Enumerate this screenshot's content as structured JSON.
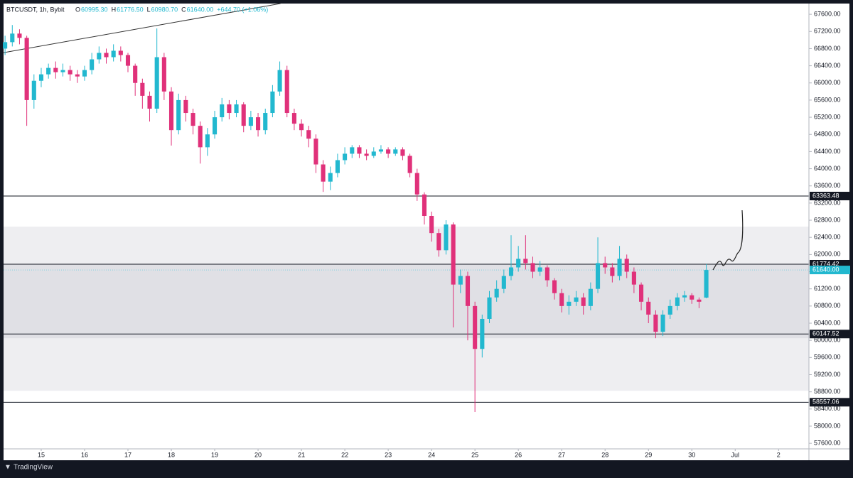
{
  "header": {
    "symbol": "BTCUSDT, 1h, Bybit",
    "ohlc": [
      {
        "key": "O",
        "value": "60995.30"
      },
      {
        "key": "H",
        "value": "61776.50"
      },
      {
        "key": "L",
        "value": "60980.70"
      },
      {
        "key": "C",
        "value": "61640.00"
      }
    ],
    "change": "+644.70 (+1.06%)"
  },
  "footer": {
    "brand": "TradingView"
  },
  "chart_data": {
    "type": "candlestick",
    "up_color": "#22b8cf",
    "down_color": "#e0317a",
    "open": [
      66800,
      66950,
      67150,
      67050,
      65600,
      66050,
      66200,
      66350,
      66250,
      66300,
      66200,
      66150,
      66300,
      66550,
      66700,
      66600,
      66750,
      66650,
      66400,
      66000,
      65700,
      65400,
      66600,
      65800,
      64900,
      65600,
      65300,
      65000,
      64500,
      64800,
      65200,
      65500,
      65300,
      65500,
      65000,
      65200,
      64900,
      65300,
      65800,
      66300,
      65300,
      65050,
      64900,
      64700,
      64100,
      63700,
      63900,
      64200,
      64350,
      64500,
      64350,
      64300,
      64400,
      64450,
      64350,
      64450,
      64300,
      63900,
      63400,
      62900,
      62500,
      62100,
      62700,
      61300,
      61500,
      60800,
      59800,
      60500,
      61000,
      61200,
      61500,
      61700,
      61900,
      61800,
      61600,
      61700,
      61400,
      61100,
      60800,
      60900,
      61000,
      60800,
      61200,
      61800,
      61700,
      61500,
      61900,
      61600,
      61300,
      60900,
      60600,
      60200,
      60600,
      60800,
      61000,
      61050,
      60950,
      60995.3
    ],
    "high": [
      67100,
      67350,
      67250,
      67100,
      66200,
      66350,
      66450,
      66500,
      66450,
      66400,
      66300,
      66400,
      66700,
      66850,
      66800,
      66900,
      66850,
      66700,
      66450,
      66100,
      65800,
      67270,
      66700,
      65900,
      65750,
      65700,
      65400,
      65100,
      64950,
      65350,
      65650,
      65600,
      65600,
      65550,
      65350,
      65300,
      65400,
      65950,
      66500,
      66400,
      65400,
      65150,
      65000,
      64800,
      64200,
      64050,
      64350,
      64500,
      64550,
      64550,
      64450,
      64500,
      64550,
      64500,
      64500,
      64500,
      64350,
      64000,
      63450,
      63000,
      62600,
      62800,
      62750,
      61650,
      61600,
      60900,
      60600,
      61150,
      61400,
      61650,
      62450,
      62200,
      62450,
      61950,
      61850,
      61750,
      61450,
      61200,
      61050,
      61150,
      61100,
      61350,
      62400,
      61950,
      61800,
      62200,
      62000,
      61700,
      61350,
      61000,
      60700,
      60700,
      60950,
      61100,
      61150,
      61100,
      61000,
      61776.5
    ],
    "low": [
      66650,
      66850,
      66900,
      65000,
      65400,
      65900,
      66100,
      66100,
      66150,
      66050,
      66000,
      66050,
      66200,
      66450,
      66450,
      66500,
      66500,
      66250,
      65700,
      65400,
      65100,
      65300,
      65600,
      64540,
      64800,
      65100,
      64800,
      64120,
      64300,
      64700,
      65100,
      65150,
      65200,
      64850,
      64900,
      64750,
      64800,
      65200,
      65700,
      65200,
      64900,
      64750,
      64500,
      63900,
      63460,
      63500,
      63800,
      64100,
      64250,
      64250,
      64200,
      64250,
      64350,
      64250,
      64300,
      64200,
      63800,
      63250,
      62700,
      62300,
      61950,
      62000,
      60300,
      61100,
      60000,
      58330,
      59600,
      60400,
      60900,
      61100,
      61400,
      61600,
      61650,
      61450,
      61500,
      61250,
      60950,
      60650,
      60600,
      60800,
      60600,
      60700,
      61100,
      61550,
      61350,
      61400,
      61450,
      61100,
      60700,
      60400,
      60050,
      60100,
      60500,
      60700,
      60900,
      60850,
      60750,
      60980.7
    ],
    "close": [
      66950,
      67150,
      67050,
      65600,
      66050,
      66200,
      66350,
      66250,
      66300,
      66200,
      66150,
      66300,
      66550,
      66700,
      66600,
      66750,
      66650,
      66400,
      66000,
      65700,
      65400,
      66600,
      65800,
      64900,
      65600,
      65300,
      65000,
      64500,
      64800,
      65200,
      65500,
      65300,
      65500,
      65000,
      65200,
      64900,
      65300,
      65800,
      66300,
      65300,
      65050,
      64900,
      64700,
      64100,
      63700,
      63900,
      64200,
      64350,
      64500,
      64350,
      64300,
      64400,
      64450,
      64350,
      64450,
      64300,
      63900,
      63400,
      62900,
      62500,
      62100,
      62700,
      61300,
      61500,
      60800,
      59800,
      60500,
      61000,
      61200,
      61500,
      61700,
      61900,
      61800,
      61600,
      61700,
      61400,
      61100,
      60800,
      60900,
      61000,
      60800,
      61200,
      61800,
      61700,
      61500,
      61900,
      61600,
      61300,
      60900,
      60600,
      60200,
      60600,
      60800,
      61000,
      61050,
      60950,
      60900,
      61640
    ],
    "xlim": [
      -0.7,
      111.2
    ],
    "xticks": [
      {
        "value": 5,
        "label": "15"
      },
      {
        "value": 11,
        "label": "16"
      },
      {
        "value": 17,
        "label": "17"
      },
      {
        "value": 23,
        "label": "18"
      },
      {
        "value": 29,
        "label": "19"
      },
      {
        "value": 35,
        "label": "20"
      },
      {
        "value": 41,
        "label": "21"
      },
      {
        "value": 47,
        "label": "22"
      },
      {
        "value": 53,
        "label": "23"
      },
      {
        "value": 59,
        "label": "24"
      },
      {
        "value": 65,
        "label": "25"
      },
      {
        "value": 71,
        "label": "26"
      },
      {
        "value": 77,
        "label": "27"
      },
      {
        "value": 83,
        "label": "28"
      },
      {
        "value": 89,
        "label": "29"
      },
      {
        "value": 95,
        "label": "30"
      },
      {
        "value": 101,
        "label": "Jul"
      },
      {
        "value": 107,
        "label": "2"
      }
    ],
    "ylim": [
      57470,
      67850
    ],
    "yticks": [
      {
        "value": 57600,
        "label": "57600.00"
      },
      {
        "value": 58000,
        "label": "58000.00"
      },
      {
        "value": 58400,
        "label": "58400.00"
      },
      {
        "value": 58800,
        "label": "58800.00"
      },
      {
        "value": 59200,
        "label": "59200.00"
      },
      {
        "value": 59600,
        "label": "59600.00"
      },
      {
        "value": 60000,
        "label": "60000.00"
      },
      {
        "value": 60400,
        "label": "60400.00"
      },
      {
        "value": 60800,
        "label": "60800.00"
      },
      {
        "value": 61200,
        "label": "61200.00"
      },
      {
        "value": 61600,
        "label": "61600.00"
      },
      {
        "value": 62000,
        "label": "62000.00"
      },
      {
        "value": 62400,
        "label": "62400.00"
      },
      {
        "value": 62800,
        "label": "62800.00"
      },
      {
        "value": 63200,
        "label": "63200.00"
      },
      {
        "value": 63600,
        "label": "63600.00"
      },
      {
        "value": 64000,
        "label": "64000.00"
      },
      {
        "value": 64400,
        "label": "64400.00"
      },
      {
        "value": 64800,
        "label": "64800.00"
      },
      {
        "value": 65200,
        "label": "65200.00"
      },
      {
        "value": 65600,
        "label": "65600.00"
      },
      {
        "value": 66000,
        "label": "66000.00"
      },
      {
        "value": 66400,
        "label": "66400.00"
      },
      {
        "value": 66800,
        "label": "66800.00"
      },
      {
        "value": 67200,
        "label": "67200.00"
      },
      {
        "value": 67600,
        "label": "67600.00"
      }
    ],
    "levels": [
      {
        "value": 63363.48,
        "label": "63363.48"
      },
      {
        "value": 61774.42,
        "label": "61774.42"
      },
      {
        "value": 60147.52,
        "label": "60147.52"
      },
      {
        "value": 58557.06,
        "label": "58557.06"
      }
    ],
    "current_price": {
      "value": 61640,
      "label": "61640.00"
    },
    "zones": [
      {
        "from": 58825,
        "to": 62650,
        "color": "#eeeef1"
      },
      {
        "from": 60050,
        "to": 61775,
        "color": "#e0e0e5"
      }
    ],
    "trendline": {
      "x": [
        -0.2,
        38.1
      ],
      "y": [
        66706,
        67850
      ]
    }
  }
}
